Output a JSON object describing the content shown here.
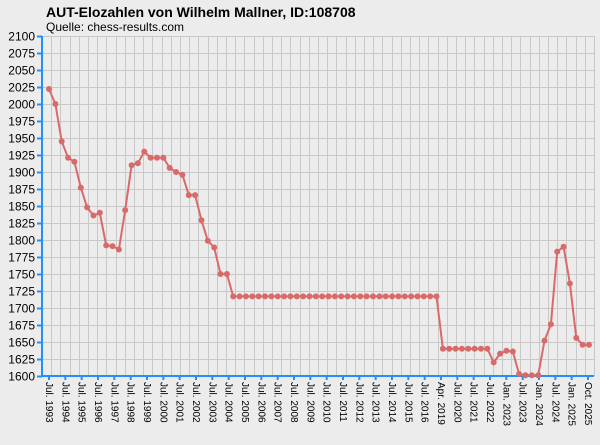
{
  "chart_data": {
    "type": "line",
    "title": "AUT-Elozahlen von Wilhelm Mallner, ID:108708",
    "subtitle": "Quelle: chess-results.com",
    "ylim": [
      1600,
      2100
    ],
    "ytick_step": 25,
    "grid": true,
    "colors": {
      "line": "#d96a6a",
      "axis": "#1e90ff",
      "grid": "#c8c8c8",
      "background": "#ececec"
    },
    "x_tick_labels": [
      "Jul. 1993",
      "Jul. 1994",
      "Jul. 1995",
      "Jul. 1996",
      "Jul. 1997",
      "Jul. 1998",
      "Jul. 1999",
      "Jul. 2000",
      "Jul. 2001",
      "Jul. 2002",
      "Jul. 2003",
      "Jul. 2004",
      "Jul. 2005",
      "Jul. 2006",
      "Jul. 2007",
      "Jul. 2008",
      "Jul. 2009",
      "Jul. 2010",
      "Jul. 2011",
      "Jul. 2012",
      "Jul. 2013",
      "Jul. 2014",
      "Jul. 2015",
      "Jul. 2016",
      "Apr. 2019",
      "Jul. 2020",
      "Jul. 2021",
      "Jul. 2022",
      "Jan. 2023",
      "Jul. 2023",
      "Jan. 2024",
      "Jul. 2024",
      "Jan. 2025",
      "Oct. 2025"
    ],
    "values": [
      2022,
      2000,
      1945,
      1921,
      1915,
      1877,
      1848,
      1836,
      1840,
      1792,
      1791,
      1786,
      1844,
      1910,
      1913,
      1930,
      1921,
      1921,
      1921,
      1906,
      1900,
      1896,
      1866,
      1866,
      1829,
      1799,
      1789,
      1750,
      1750,
      1717,
      1717,
      1717,
      1717,
      1717,
      1717,
      1717,
      1717,
      1717,
      1717,
      1717,
      1717,
      1717,
      1717,
      1717,
      1717,
      1717,
      1717,
      1717,
      1717,
      1717,
      1717,
      1717,
      1717,
      1717,
      1717,
      1717,
      1717,
      1717,
      1717,
      1717,
      1717,
      1717,
      1640,
      1640,
      1640,
      1640,
      1640,
      1640,
      1640,
      1640,
      1620,
      1633,
      1637,
      1636,
      1603,
      1601,
      1601,
      1601,
      1652,
      1676,
      1783,
      1790,
      1736,
      1656,
      1646,
      1646
    ]
  }
}
